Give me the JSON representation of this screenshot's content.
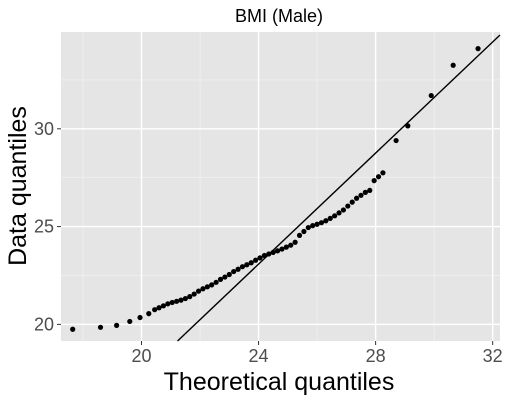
{
  "chart_data": {
    "type": "scatter",
    "title": "BMI (Male)",
    "xlabel": "Theoretical quantiles",
    "ylabel": "Data quantiles",
    "xlim": [
      17.25,
      32.25
    ],
    "ylim": [
      19.15,
      34.95
    ],
    "x_ticks": [
      20,
      24,
      28,
      32
    ],
    "y_ticks": [
      20,
      25,
      30
    ],
    "grid": true,
    "legend": "none",
    "panel_color": "#e5e5e5",
    "point_color": "#000000",
    "line_color": "#000000",
    "reference_line": {
      "intercept": -11.0,
      "slope": 1.42
    },
    "points": [
      [
        17.65,
        19.75
      ],
      [
        18.6,
        19.85
      ],
      [
        19.15,
        19.95
      ],
      [
        19.6,
        20.15
      ],
      [
        19.95,
        20.35
      ],
      [
        20.25,
        20.55
      ],
      [
        20.45,
        20.75
      ],
      [
        20.6,
        20.85
      ],
      [
        20.75,
        20.95
      ],
      [
        20.9,
        21.05
      ],
      [
        21.05,
        21.12
      ],
      [
        21.2,
        21.18
      ],
      [
        21.35,
        21.24
      ],
      [
        21.5,
        21.32
      ],
      [
        21.65,
        21.42
      ],
      [
        21.8,
        21.55
      ],
      [
        21.95,
        21.7
      ],
      [
        22.1,
        21.82
      ],
      [
        22.25,
        21.92
      ],
      [
        22.4,
        22.02
      ],
      [
        22.55,
        22.15
      ],
      [
        22.7,
        22.3
      ],
      [
        22.85,
        22.42
      ],
      [
        23.0,
        22.55
      ],
      [
        23.15,
        22.7
      ],
      [
        23.3,
        22.82
      ],
      [
        23.45,
        22.95
      ],
      [
        23.6,
        23.05
      ],
      [
        23.75,
        23.15
      ],
      [
        23.9,
        23.28
      ],
      [
        24.05,
        23.4
      ],
      [
        24.2,
        23.52
      ],
      [
        24.35,
        23.6
      ],
      [
        24.5,
        23.68
      ],
      [
        24.65,
        23.76
      ],
      [
        24.8,
        23.85
      ],
      [
        24.95,
        23.95
      ],
      [
        25.1,
        24.05
      ],
      [
        25.25,
        24.2
      ],
      [
        25.4,
        24.55
      ],
      [
        25.55,
        24.75
      ],
      [
        25.7,
        24.95
      ],
      [
        25.85,
        25.05
      ],
      [
        26.0,
        25.12
      ],
      [
        26.15,
        25.2
      ],
      [
        26.3,
        25.3
      ],
      [
        26.45,
        25.42
      ],
      [
        26.6,
        25.55
      ],
      [
        26.75,
        25.7
      ],
      [
        26.9,
        25.85
      ],
      [
        27.05,
        26.05
      ],
      [
        27.2,
        26.25
      ],
      [
        27.35,
        26.45
      ],
      [
        27.5,
        26.6
      ],
      [
        27.65,
        26.75
      ],
      [
        27.8,
        26.85
      ],
      [
        27.95,
        27.35
      ],
      [
        28.1,
        27.55
      ],
      [
        28.25,
        27.75
      ],
      [
        28.7,
        29.4
      ],
      [
        29.1,
        30.15
      ],
      [
        29.9,
        31.7
      ],
      [
        30.65,
        33.25
      ],
      [
        31.5,
        34.1
      ]
    ]
  }
}
